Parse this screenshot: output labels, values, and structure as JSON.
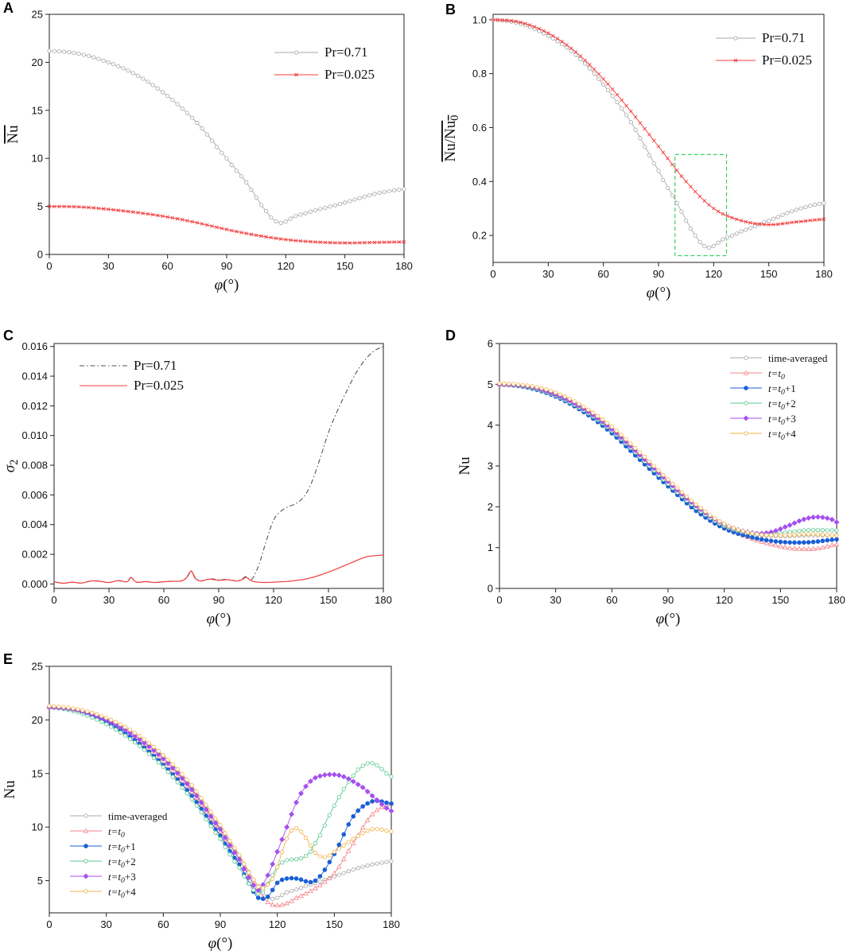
{
  "colors": {
    "gray": "#a9a9a9",
    "red": "#f23c3c",
    "pink": "#f5848a",
    "blue": "#1a5fd6",
    "green": "#56c88e",
    "purple": "#a44ff0",
    "orange": "#f3b24a",
    "dashgray": "#555555",
    "box": "#3fcf63"
  },
  "chart_data": [
    {
      "panel": "A",
      "type": "line",
      "xlabel": "φ(°)",
      "ylabel": "Nu",
      "ylabel_overline": true,
      "xlim": [
        0,
        180
      ],
      "ylim": [
        0,
        25
      ],
      "xticks": [
        0,
        30,
        60,
        90,
        120,
        150,
        180
      ],
      "yticks": [
        0,
        5,
        10,
        15,
        20,
        25
      ],
      "legend_position": "top-right",
      "series": [
        {
          "name": "Pr=0.71",
          "color": "gray",
          "marker": "circle",
          "x": [
            0,
            15,
            30,
            45,
            60,
            75,
            90,
            100,
            110,
            117,
            125,
            135,
            150,
            165,
            180
          ],
          "y": [
            21.2,
            20.9,
            20.0,
            18.6,
            16.5,
            13.7,
            10.0,
            7.5,
            4.5,
            3.3,
            4.0,
            4.6,
            5.4,
            6.3,
            6.8
          ]
        },
        {
          "name": "Pr=0.025",
          "color": "red",
          "marker": "x",
          "x": [
            0,
            15,
            30,
            45,
            60,
            75,
            90,
            105,
            120,
            135,
            150,
            165,
            180
          ],
          "y": [
            5.0,
            4.95,
            4.7,
            4.35,
            3.9,
            3.3,
            2.6,
            2.0,
            1.55,
            1.3,
            1.2,
            1.25,
            1.3
          ]
        }
      ]
    },
    {
      "panel": "B",
      "type": "line",
      "xlabel": "φ(°)",
      "ylabel": "Nu/Nu",
      "ylabel_sub": "0",
      "ylabel_overline": true,
      "xlim": [
        0,
        180
      ],
      "ylim": [
        0.1,
        1.02
      ],
      "xticks": [
        0,
        30,
        60,
        90,
        120,
        150,
        180
      ],
      "yticks": [
        0.2,
        0.4,
        0.6,
        0.8,
        1.0
      ],
      "ytick_labels": [
        "0.2",
        "0.4",
        "0.6",
        "0.8",
        "1.0"
      ],
      "legend_position": "top-right",
      "highlight_box": {
        "x": [
          99,
          127
        ],
        "y": [
          0.125,
          0.5
        ]
      },
      "series": [
        {
          "name": "Pr=0.71",
          "color": "gray",
          "marker": "circle",
          "x": [
            0,
            15,
            30,
            45,
            60,
            75,
            90,
            100,
            110,
            117,
            125,
            135,
            150,
            165,
            180
          ],
          "y": [
            1.0,
            0.985,
            0.94,
            0.87,
            0.76,
            0.62,
            0.44,
            0.32,
            0.2,
            0.155,
            0.185,
            0.215,
            0.255,
            0.295,
            0.32
          ]
        },
        {
          "name": "Pr=0.025",
          "color": "red",
          "marker": "x",
          "x": [
            0,
            15,
            30,
            45,
            60,
            75,
            90,
            105,
            120,
            135,
            150,
            165,
            180
          ],
          "y": [
            1.0,
            0.99,
            0.95,
            0.88,
            0.78,
            0.66,
            0.53,
            0.4,
            0.3,
            0.255,
            0.24,
            0.25,
            0.26
          ]
        }
      ]
    },
    {
      "panel": "C",
      "type": "line",
      "xlabel": "φ(°)",
      "ylabel": "σ",
      "ylabel_sub": "2",
      "xlim": [
        0,
        180
      ],
      "ylim": [
        -0.0003,
        0.0162
      ],
      "xticks": [
        0,
        30,
        60,
        90,
        120,
        150,
        180
      ],
      "yticks": [
        0,
        0.002,
        0.004,
        0.006,
        0.008,
        0.01,
        0.012,
        0.014,
        0.016
      ],
      "ytick_labels": [
        "0.000",
        "0.002",
        "0.004",
        "0.006",
        "0.008",
        "0.010",
        "0.012",
        "0.014",
        "0.016"
      ],
      "legend_position": "top-left",
      "series": [
        {
          "name": "Pr=0.71",
          "color": "dashgray",
          "style": "dashdot",
          "x": [
            0,
            5,
            10,
            15,
            20,
            25,
            30,
            35,
            40,
            42,
            45,
            50,
            55,
            60,
            65,
            70,
            73,
            75,
            77,
            80,
            85,
            90,
            95,
            100,
            103,
            105,
            108,
            112,
            116,
            120,
            124,
            128,
            132,
            136,
            140,
            145,
            150,
            155,
            160,
            165,
            170,
            175,
            180
          ],
          "y": [
            0.00015,
            5e-05,
            0.00012,
            6e-05,
            0.0002,
            0.00018,
            0.0001,
            0.00022,
            0.00015,
            0.00042,
            0.00012,
            0.00016,
            0.0001,
            0.00015,
            0.00018,
            0.00022,
            0.00055,
            0.0009,
            0.00045,
            0.0002,
            0.00035,
            0.00028,
            0.0003,
            0.0002,
            0.00035,
            0.0005,
            0.0003,
            0.0013,
            0.0029,
            0.0043,
            0.0049,
            0.0052,
            0.0054,
            0.0058,
            0.0066,
            0.0083,
            0.0102,
            0.0117,
            0.013,
            0.0142,
            0.0151,
            0.0157,
            0.016
          ]
        },
        {
          "name": "Pr=0.025",
          "color": "red",
          "style": "solid",
          "x": [
            0,
            5,
            10,
            15,
            20,
            25,
            30,
            35,
            40,
            42,
            45,
            50,
            55,
            60,
            65,
            70,
            73,
            75,
            77,
            80,
            85,
            90,
            95,
            100,
            103,
            105,
            108,
            112,
            116,
            120,
            130,
            140,
            150,
            160,
            170,
            175,
            180
          ],
          "y": [
            0.00015,
            5e-05,
            0.00012,
            6e-05,
            0.0002,
            0.00018,
            0.0001,
            0.00022,
            0.00015,
            0.00045,
            0.00012,
            0.00016,
            0.0001,
            0.00015,
            0.00018,
            0.00022,
            0.0005,
            0.00088,
            0.0004,
            0.0002,
            0.00032,
            0.00025,
            0.00028,
            0.0002,
            0.0003,
            0.00045,
            0.0002,
            0.00012,
            0.0001,
            0.00012,
            0.0002,
            0.0004,
            0.0008,
            0.0013,
            0.0018,
            0.0019,
            0.00195
          ]
        }
      ]
    },
    {
      "panel": "D",
      "type": "line",
      "xlabel": "φ(°)",
      "ylabel": "Nu",
      "xlim": [
        0,
        180
      ],
      "ylim": [
        0,
        6
      ],
      "xticks": [
        0,
        30,
        60,
        90,
        120,
        150,
        180
      ],
      "yticks": [
        0,
        1,
        2,
        3,
        4,
        5,
        6
      ],
      "legend_position": "top-right",
      "series": [
        {
          "name": "time-averaged",
          "label_main": "time-averaged",
          "label_sub": "",
          "label_tail": "",
          "italic": false,
          "color": "gray",
          "marker": "circle",
          "x": [
            0,
            15,
            30,
            45,
            60,
            75,
            90,
            105,
            120,
            135,
            150,
            165,
            180
          ],
          "y": [
            5.0,
            4.93,
            4.72,
            4.35,
            3.85,
            3.2,
            2.55,
            1.95,
            1.52,
            1.33,
            1.28,
            1.3,
            1.3
          ]
        },
        {
          "name": "t=t0",
          "label_main": "t=t",
          "label_sub": "0",
          "label_tail": "",
          "italic": true,
          "color": "pink",
          "marker": "triangle",
          "x": [
            0,
            15,
            30,
            45,
            60,
            75,
            90,
            105,
            120,
            135,
            150,
            160,
            170,
            180
          ],
          "y": [
            5.0,
            4.95,
            4.74,
            4.38,
            3.88,
            3.24,
            2.58,
            1.98,
            1.5,
            1.22,
            1.03,
            0.97,
            0.98,
            1.08
          ]
        },
        {
          "name": "t=t0+1",
          "label_main": "t=t",
          "label_sub": "0",
          "label_tail": "+1",
          "italic": true,
          "color": "blue",
          "marker": "filledcircle",
          "x": [
            0,
            15,
            30,
            45,
            60,
            75,
            90,
            105,
            120,
            135,
            150,
            165,
            180
          ],
          "y": [
            5.0,
            4.92,
            4.7,
            4.32,
            3.8,
            3.15,
            2.5,
            1.9,
            1.47,
            1.25,
            1.14,
            1.13,
            1.2
          ]
        },
        {
          "name": "t=t0+2",
          "label_main": "t=t",
          "label_sub": "0",
          "label_tail": "+2",
          "italic": true,
          "color": "green",
          "marker": "circle",
          "x": [
            0,
            15,
            30,
            45,
            60,
            75,
            90,
            105,
            120,
            135,
            150,
            165,
            180
          ],
          "y": [
            5.0,
            4.93,
            4.72,
            4.36,
            3.86,
            3.22,
            2.56,
            1.97,
            1.53,
            1.35,
            1.36,
            1.43,
            1.42
          ]
        },
        {
          "name": "t=t0+3",
          "label_main": "t=t",
          "label_sub": "0",
          "label_tail": "+3",
          "italic": true,
          "color": "purple",
          "marker": "diamond",
          "x": [
            0,
            15,
            30,
            45,
            60,
            75,
            90,
            105,
            120,
            135,
            145,
            155,
            163,
            170,
            177,
            180
          ],
          "y": [
            5.0,
            4.95,
            4.75,
            4.4,
            3.9,
            3.27,
            2.62,
            2.02,
            1.57,
            1.36,
            1.38,
            1.55,
            1.7,
            1.75,
            1.7,
            1.62
          ]
        },
        {
          "name": "t=t0+4",
          "label_main": "t=t",
          "label_sub": "0",
          "label_tail": "+4",
          "italic": true,
          "color": "orange",
          "marker": "circle",
          "x": [
            0,
            15,
            30,
            45,
            60,
            75,
            90,
            105,
            120,
            135,
            150,
            165,
            180
          ],
          "y": [
            5.02,
            4.97,
            4.8,
            4.45,
            3.96,
            3.33,
            2.67,
            2.06,
            1.58,
            1.35,
            1.3,
            1.33,
            1.3
          ]
        }
      ]
    },
    {
      "panel": "E",
      "type": "line",
      "xlabel": "φ(°)",
      "ylabel": "Nu",
      "xlim": [
        0,
        180
      ],
      "ylim": [
        2,
        25
      ],
      "xticks": [
        0,
        30,
        60,
        90,
        120,
        150,
        180
      ],
      "yticks": [
        5,
        10,
        15,
        20,
        25
      ],
      "legend_position": "bottom-left",
      "series": [
        {
          "name": "time-averaged",
          "label_main": "time-averaged",
          "label_sub": "",
          "label_tail": "",
          "italic": false,
          "color": "gray",
          "marker": "circle",
          "x": [
            0,
            15,
            30,
            45,
            60,
            75,
            90,
            100,
            110,
            117,
            125,
            135,
            150,
            165,
            180
          ],
          "y": [
            21.2,
            20.9,
            20.0,
            18.5,
            16.4,
            13.6,
            9.9,
            7.3,
            4.5,
            3.3,
            3.9,
            4.5,
            5.4,
            6.3,
            6.8
          ]
        },
        {
          "name": "t=t0",
          "label_main": "t=t",
          "label_sub": "0",
          "label_tail": "",
          "italic": true,
          "color": "pink",
          "marker": "triangle",
          "x": [
            0,
            15,
            30,
            45,
            60,
            75,
            90,
            100,
            110,
            115,
            120,
            125,
            130,
            140,
            150,
            160,
            170,
            180
          ],
          "y": [
            21.2,
            20.9,
            19.9,
            18.3,
            16.1,
            13.3,
            9.6,
            7.0,
            4.2,
            3.0,
            2.7,
            2.9,
            3.4,
            4.3,
            5.7,
            8.5,
            11.2,
            12.2
          ]
        },
        {
          "name": "t=t0+1",
          "label_main": "t=t",
          "label_sub": "0",
          "label_tail": "+1",
          "italic": true,
          "color": "blue",
          "marker": "filledcircle",
          "x": [
            0,
            15,
            30,
            45,
            60,
            75,
            90,
            100,
            107,
            110,
            115,
            120,
            125,
            130,
            140,
            150,
            160,
            170,
            180
          ],
          "y": [
            21.2,
            20.8,
            19.8,
            18.1,
            15.8,
            12.9,
            9.2,
            6.5,
            4.2,
            3.4,
            3.5,
            4.8,
            5.2,
            5.2,
            5.0,
            7.5,
            11.0,
            12.4,
            12.2
          ]
        },
        {
          "name": "t=t0+2",
          "label_main": "t=t",
          "label_sub": "0",
          "label_tail": "+2",
          "italic": true,
          "color": "green",
          "marker": "circle",
          "x": [
            0,
            15,
            30,
            45,
            60,
            75,
            90,
            100,
            107,
            110,
            115,
            120,
            125,
            130,
            135,
            140,
            150,
            160,
            167,
            172,
            180
          ],
          "y": [
            21.2,
            20.7,
            19.6,
            17.9,
            15.6,
            12.6,
            8.9,
            6.2,
            4.3,
            3.8,
            4.7,
            6.3,
            6.9,
            7.0,
            7.3,
            8.5,
            12.0,
            14.8,
            15.9,
            15.8,
            14.7
          ]
        },
        {
          "name": "t=t0+3",
          "label_main": "t=t",
          "label_sub": "0",
          "label_tail": "+3",
          "italic": true,
          "color": "purple",
          "marker": "diamond",
          "x": [
            0,
            15,
            30,
            45,
            60,
            75,
            90,
            100,
            107,
            110,
            115,
            120,
            125,
            130,
            135,
            140,
            147,
            155,
            165,
            172,
            180
          ],
          "y": [
            21.2,
            20.9,
            20.0,
            18.5,
            16.4,
            13.5,
            9.8,
            7.0,
            4.8,
            4.1,
            5.5,
            7.7,
            10.0,
            12.3,
            13.8,
            14.6,
            14.9,
            14.7,
            13.7,
            12.6,
            11.5
          ]
        },
        {
          "name": "t=t0+4",
          "label_main": "t=t",
          "label_sub": "0",
          "label_tail": "+4",
          "italic": true,
          "color": "orange",
          "marker": "circle",
          "x": [
            0,
            15,
            30,
            45,
            60,
            75,
            90,
            100,
            108,
            112,
            118,
            122,
            126,
            130,
            135,
            140,
            145,
            150,
            160,
            170,
            180
          ],
          "y": [
            21.3,
            21.0,
            20.2,
            18.8,
            16.7,
            13.9,
            10.2,
            7.4,
            5.0,
            4.3,
            5.3,
            7.4,
            9.3,
            9.9,
            9.0,
            7.6,
            7.2,
            7.7,
            8.9,
            9.8,
            9.6
          ]
        }
      ]
    }
  ]
}
